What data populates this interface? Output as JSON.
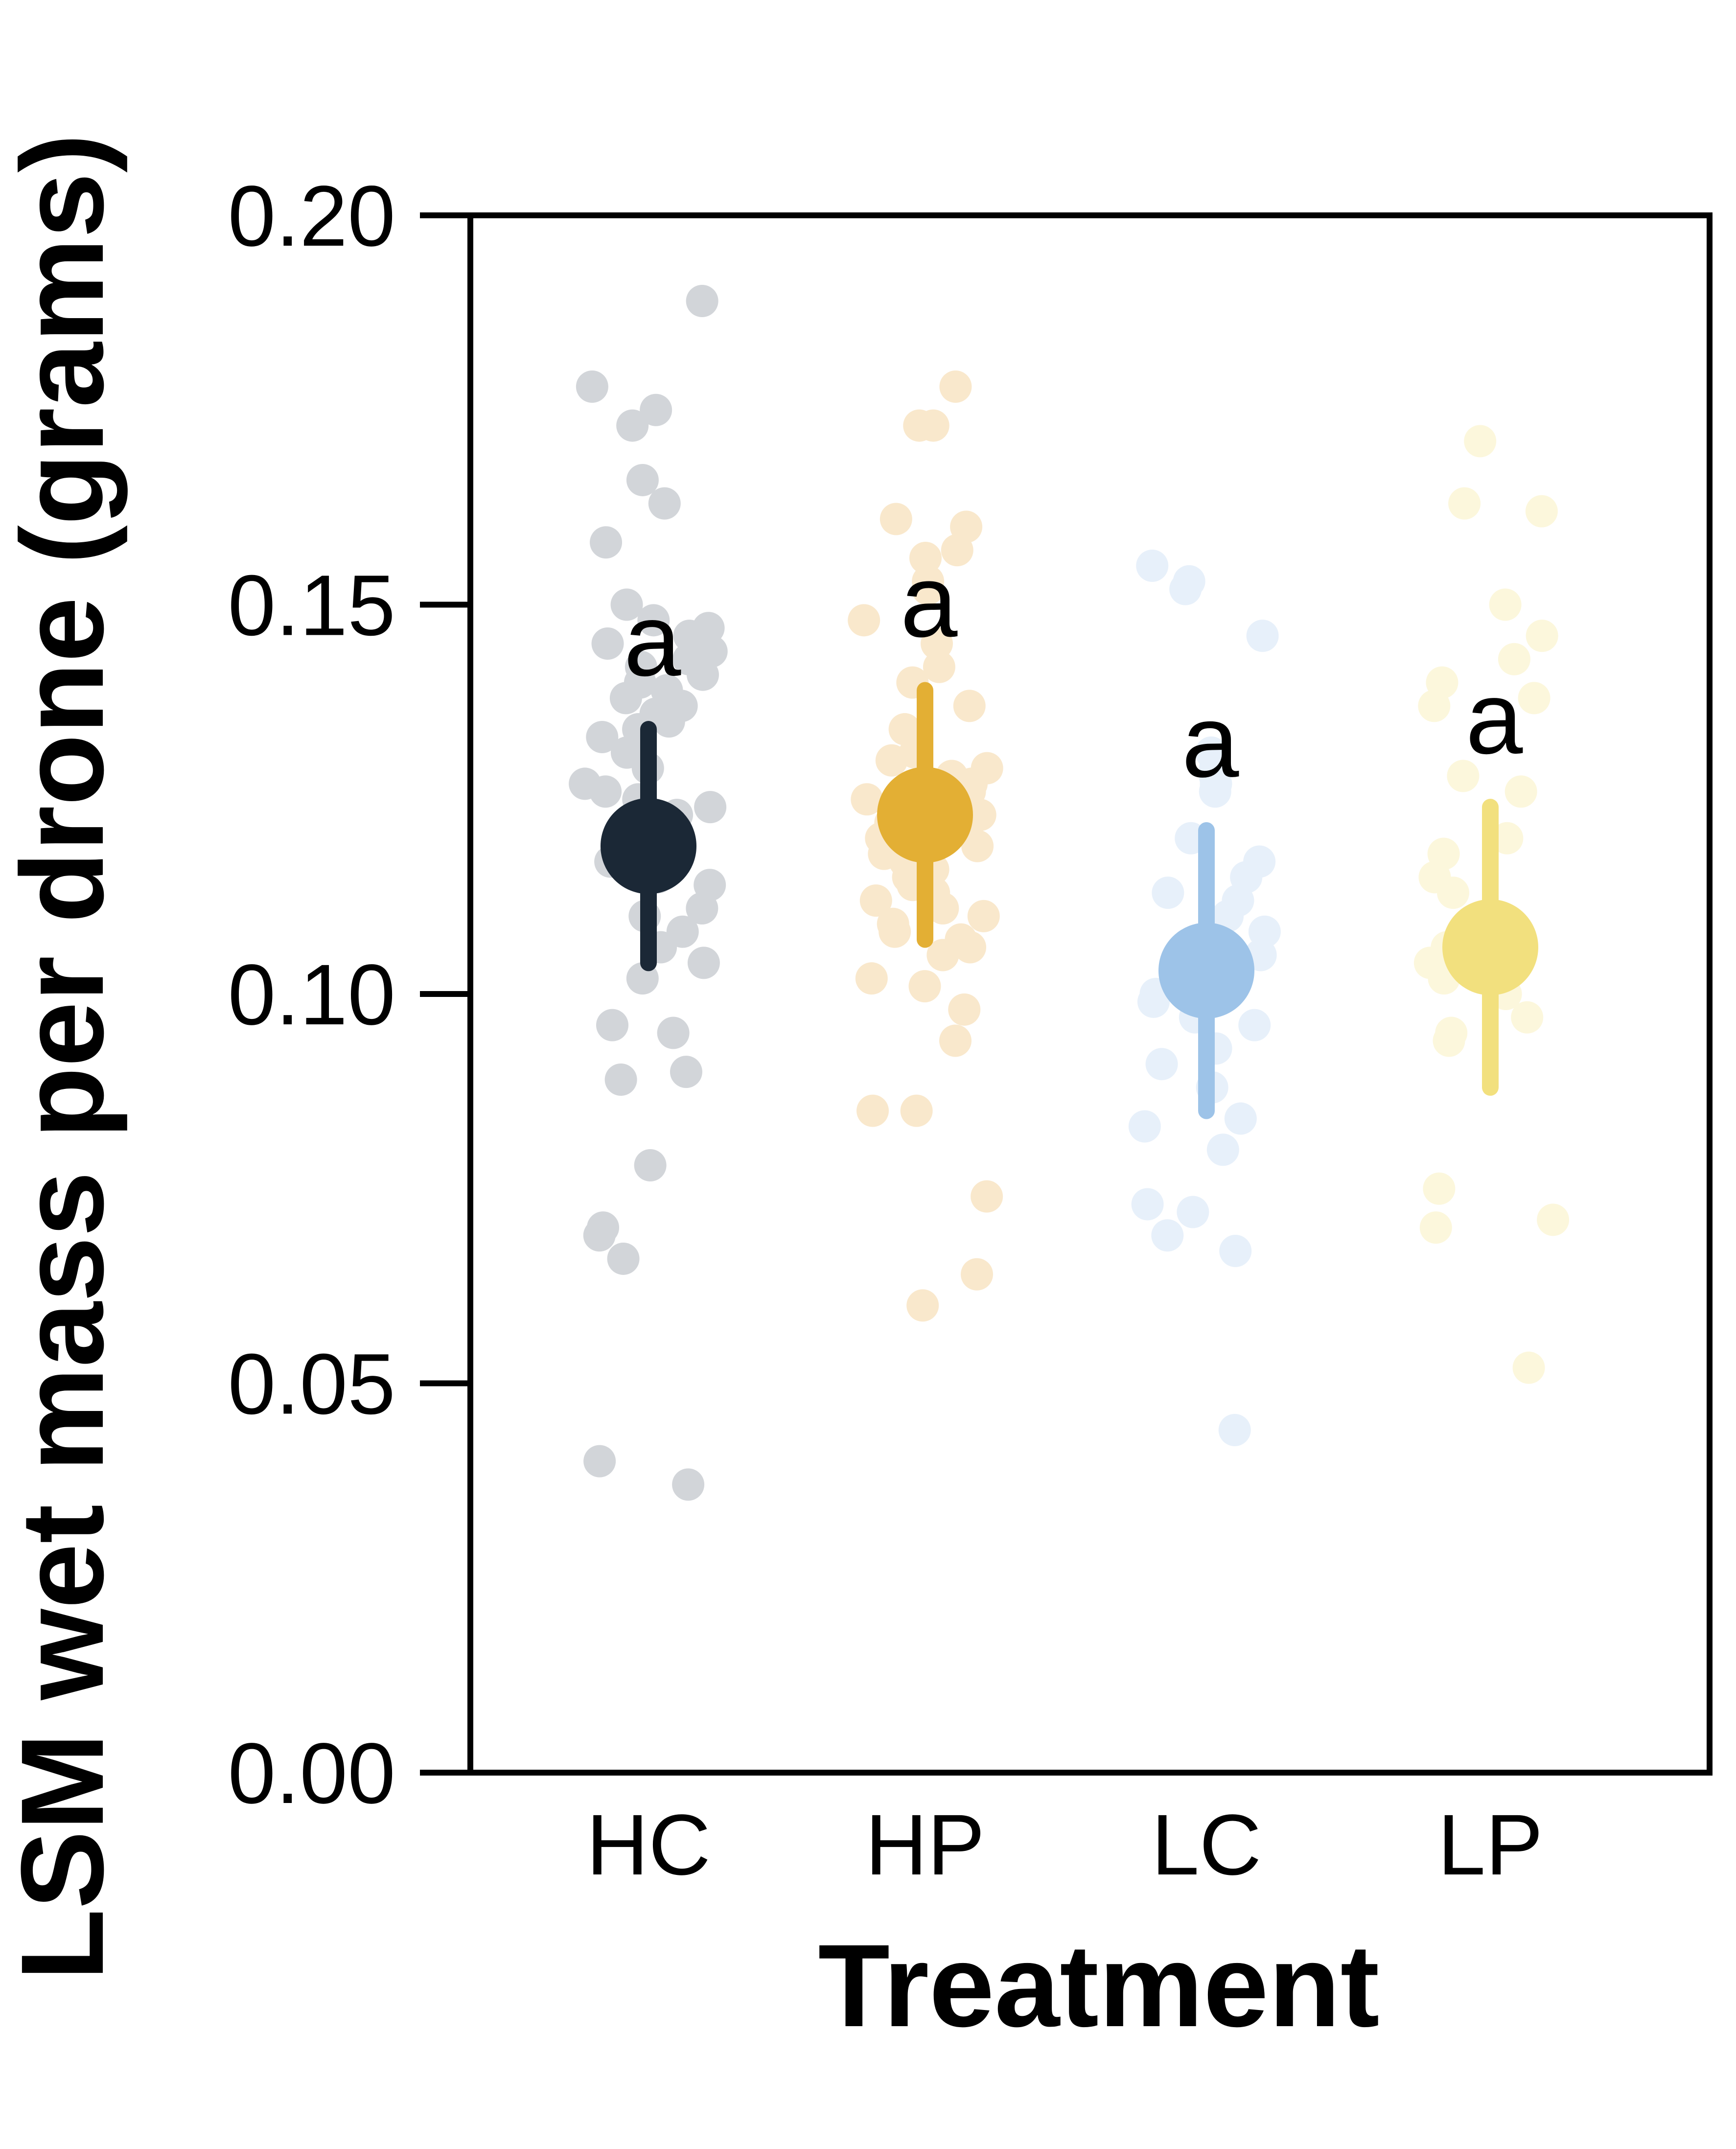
{
  "chart_data": {
    "type": "scatter",
    "title": "",
    "xlabel": "Treatment",
    "ylabel": "LSM wet mass per drone (grams)",
    "ylim": [
      0,
      0.2
    ],
    "yticks": [
      "0.00",
      "0.05",
      "0.10",
      "0.15",
      "0.20"
    ],
    "categories": [
      "HC",
      "HP",
      "LC",
      "LP"
    ],
    "grid": false,
    "legend": "none",
    "series": [
      {
        "category": "HC",
        "color": "#1b2836",
        "raw_color": "#d2d5d9",
        "mean": 0.119,
        "ci_low": 0.104,
        "ci_high": 0.134,
        "letter": "a",
        "points": [
          0.189,
          0.178,
          0.175,
          0.173,
          0.166,
          0.163,
          0.158,
          0.15,
          0.148,
          0.147,
          0.146,
          0.145,
          0.144,
          0.143,
          0.142,
          0.141,
          0.14,
          0.139,
          0.138,
          0.137,
          0.136,
          0.135,
          0.134,
          0.133,
          0.131,
          0.129,
          0.127,
          0.126,
          0.125,
          0.124,
          0.123,
          0.121,
          0.119,
          0.117,
          0.115,
          0.114,
          0.111,
          0.11,
          0.108,
          0.106,
          0.104,
          0.102,
          0.096,
          0.095,
          0.09,
          0.089,
          0.078,
          0.07,
          0.069,
          0.066,
          0.04,
          0.037
        ]
      },
      {
        "category": "HP",
        "color": "#e3af34",
        "raw_color": "#f9e8cc",
        "mean": 0.123,
        "ci_low": 0.107,
        "ci_high": 0.139,
        "letter": "a",
        "points": [
          0.178,
          0.173,
          0.173,
          0.161,
          0.16,
          0.157,
          0.156,
          0.153,
          0.152,
          0.148,
          0.145,
          0.142,
          0.14,
          0.137,
          0.134,
          0.131,
          0.13,
          0.129,
          0.128,
          0.127,
          0.126,
          0.125,
          0.124,
          0.123,
          0.122,
          0.121,
          0.12,
          0.119,
          0.118,
          0.117,
          0.116,
          0.115,
          0.114,
          0.113,
          0.112,
          0.111,
          0.11,
          0.109,
          0.108,
          0.107,
          0.106,
          0.105,
          0.102,
          0.101,
          0.098,
          0.094,
          0.085,
          0.085,
          0.074,
          0.064,
          0.06
        ]
      },
      {
        "category": "LC",
        "color": "#9dc3e8",
        "raw_color": "#e7f0fa",
        "mean": 0.103,
        "ci_low": 0.085,
        "ci_high": 0.121,
        "letter": "a",
        "points": [
          0.155,
          0.153,
          0.152,
          0.146,
          0.131,
          0.129,
          0.128,
          0.127,
          0.126,
          0.12,
          0.117,
          0.115,
          0.113,
          0.112,
          0.11,
          0.108,
          0.106,
          0.105,
          0.104,
          0.103,
          0.101,
          0.1,
          0.099,
          0.097,
          0.096,
          0.093,
          0.091,
          0.088,
          0.084,
          0.083,
          0.08,
          0.073,
          0.072,
          0.069,
          0.067,
          0.044
        ]
      },
      {
        "category": "LP",
        "color": "#f2e07e",
        "raw_color": "#fcf7dc",
        "mean": 0.106,
        "ci_low": 0.088,
        "ci_high": 0.124,
        "letter": "a",
        "points": [
          0.171,
          0.163,
          0.162,
          0.15,
          0.146,
          0.143,
          0.14,
          0.138,
          0.137,
          0.128,
          0.126,
          0.12,
          0.118,
          0.115,
          0.113,
          0.11,
          0.108,
          0.106,
          0.104,
          0.102,
          0.1,
          0.097,
          0.095,
          0.094,
          0.075,
          0.071,
          0.07,
          0.052
        ]
      }
    ]
  }
}
